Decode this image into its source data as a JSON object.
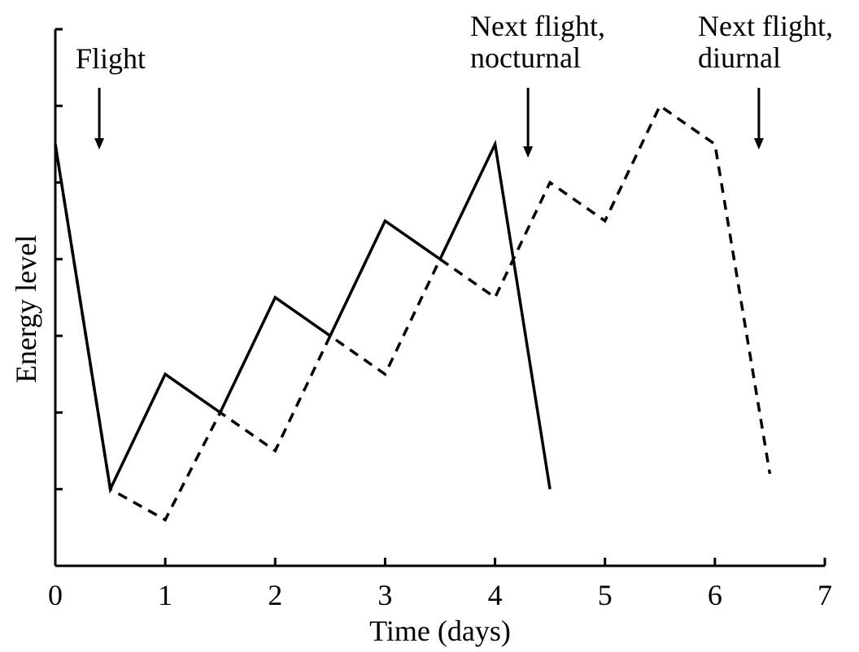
{
  "chart_data": {
    "type": "line",
    "xlabel": "Time (days)",
    "ylabel": "Energy level",
    "xlim": [
      0,
      7
    ],
    "ylim": [
      0,
      7
    ],
    "x_ticks": [
      0,
      1,
      2,
      3,
      4,
      5,
      6,
      7
    ],
    "y_tick_count": 7,
    "y_tick_labels_shown": false,
    "grid": false,
    "legend": "none",
    "series": [
      {
        "style": "solid",
        "x": [
          0,
          0.5,
          1,
          1.5,
          2,
          2.5,
          3,
          3.5,
          4,
          4.5
        ],
        "y": [
          5.5,
          1.0,
          2.5,
          2.0,
          3.5,
          3.0,
          4.5,
          4.0,
          5.5,
          1.0
        ]
      },
      {
        "style": "dashed",
        "x": [
          0,
          0.5,
          1,
          1.5,
          2,
          2.5,
          3,
          3.5,
          4,
          4.5,
          5,
          5.5,
          6,
          6.5
        ],
        "y": [
          5.5,
          1.0,
          0.6,
          2.0,
          1.5,
          3.0,
          2.5,
          4.0,
          3.5,
          5.0,
          4.5,
          6.0,
          5.5,
          1.2
        ]
      }
    ],
    "annotations": [
      {
        "lines": [
          "Flight"
        ],
        "x": 0.4
      },
      {
        "lines": [
          "Next flight,",
          "nocturnal"
        ],
        "x": 4.3
      },
      {
        "lines": [
          "Next flight,",
          "diurnal"
        ],
        "x": 6.4
      }
    ]
  }
}
